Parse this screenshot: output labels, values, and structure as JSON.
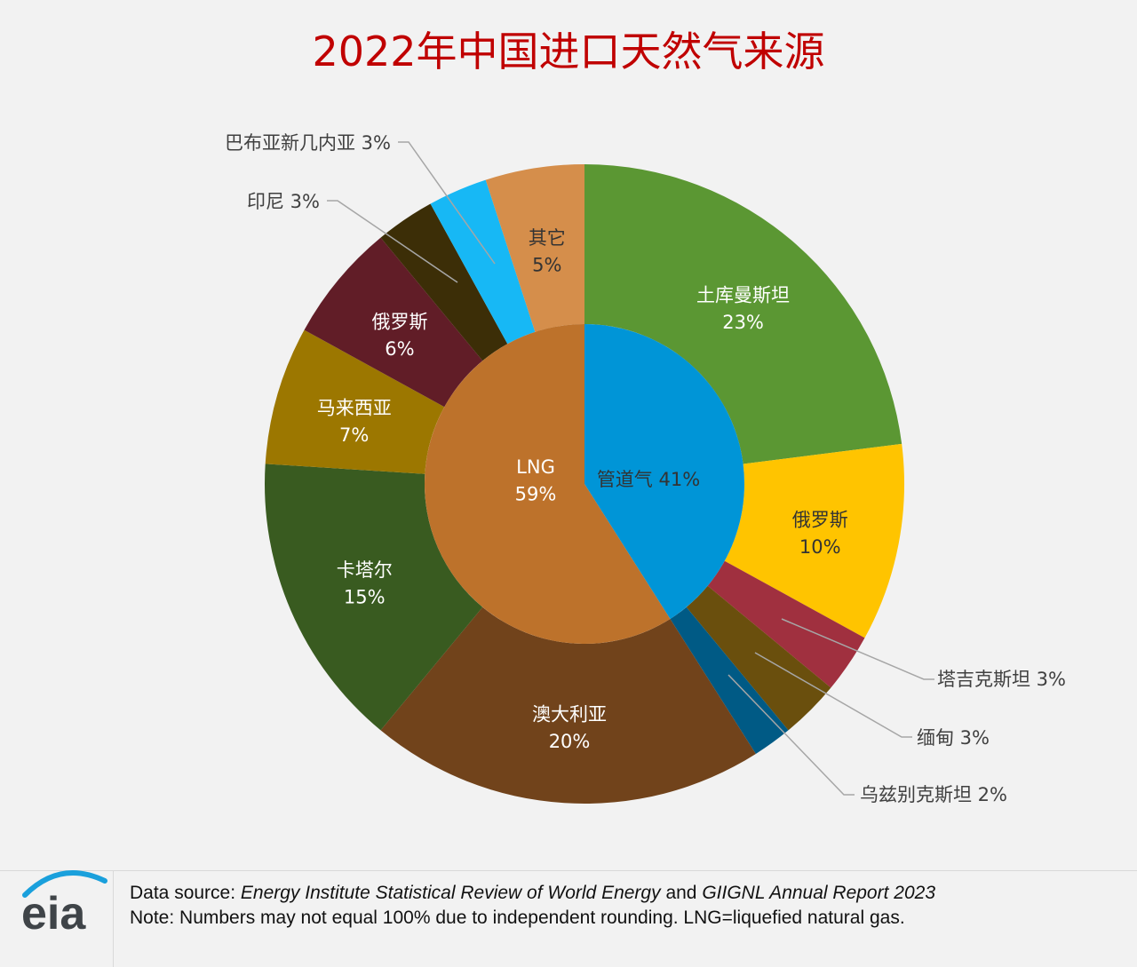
{
  "chart_data": {
    "type": "pie",
    "title": "2022年中国进口天然气来源",
    "inner_ring": [
      {
        "label": "管道气",
        "value": 41,
        "value_label": "41%",
        "color": "#0095d7"
      },
      {
        "label": "LNG",
        "value": 59,
        "value_label": "59%",
        "color": "#bd722b"
      }
    ],
    "outer_ring": [
      {
        "label": "土库曼斯坦",
        "value": 23,
        "value_label": "23%",
        "color": "#5b9733"
      },
      {
        "label": "俄罗斯",
        "value": 10,
        "value_label": "10%",
        "color": "#ffc400"
      },
      {
        "label": "塔吉克斯坦",
        "value": 3,
        "value_label": "3%",
        "color": "#a0303f"
      },
      {
        "label": "缅甸",
        "value": 3,
        "value_label": "3%",
        "color": "#6a4f0d"
      },
      {
        "label": "乌兹别克斯坦",
        "value": 2,
        "value_label": "2%",
        "color": "#005a85"
      },
      {
        "label": "澳大利亚",
        "value": 20,
        "value_label": "20%",
        "color": "#71431b"
      },
      {
        "label": "卡塔尔",
        "value": 15,
        "value_label": "15%",
        "color": "#395b20"
      },
      {
        "label": "马来西亚",
        "value": 7,
        "value_label": "7%",
        "color": "#9c7700"
      },
      {
        "label": "俄罗斯",
        "value": 6,
        "value_label": "6%",
        "color": "#611d27"
      },
      {
        "label": "印尼",
        "value": 3,
        "value_label": "3%",
        "color": "#3c2e07"
      },
      {
        "label": "巴布亚新几内亚",
        "value": 3,
        "value_label": "3%",
        "color": "#17b8f5"
      },
      {
        "label": "其它",
        "value": 5,
        "value_label": "5%",
        "color": "#d58e4b"
      }
    ]
  },
  "footer": {
    "source_prefix": "Data source: ",
    "source_italic_1": "Energy Institute Statistical Review of World Energy",
    "source_middle": " and ",
    "source_italic_2": "GIIGNL Annual Report 2023",
    "note": "Note: Numbers may not equal 100% due to independent rounding. LNG=liquefied natural gas.",
    "logo_text": "eia"
  }
}
